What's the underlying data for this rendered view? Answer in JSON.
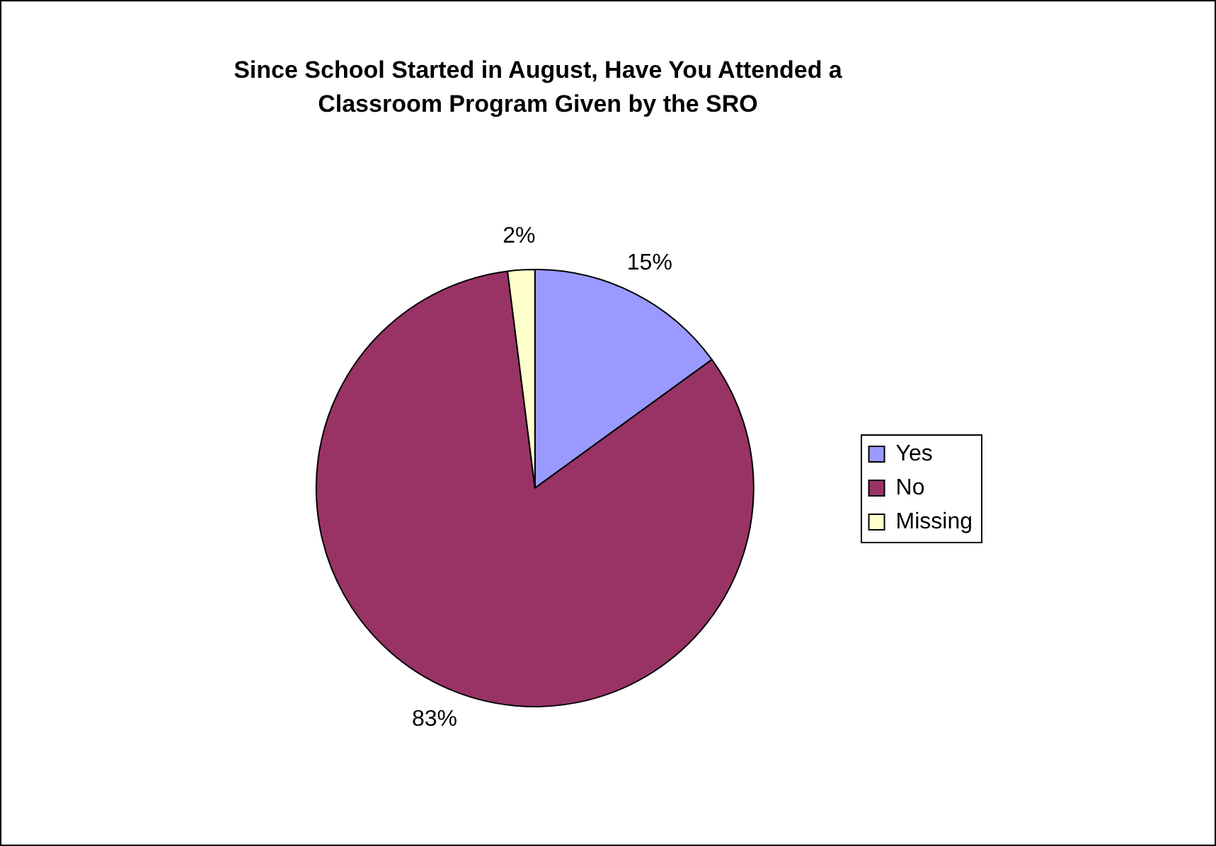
{
  "chart_data": {
    "type": "pie",
    "title": "Since School Started in August, Have You Attended a Classroom Program Given by the SRO",
    "categories": [
      "Yes",
      "No",
      "Missing"
    ],
    "values": [
      15,
      83,
      2
    ],
    "value_labels": [
      "15%",
      "83%",
      "2%"
    ],
    "colors": [
      "#9999ff",
      "#993366",
      "#ffffcc"
    ],
    "legend": "right"
  }
}
